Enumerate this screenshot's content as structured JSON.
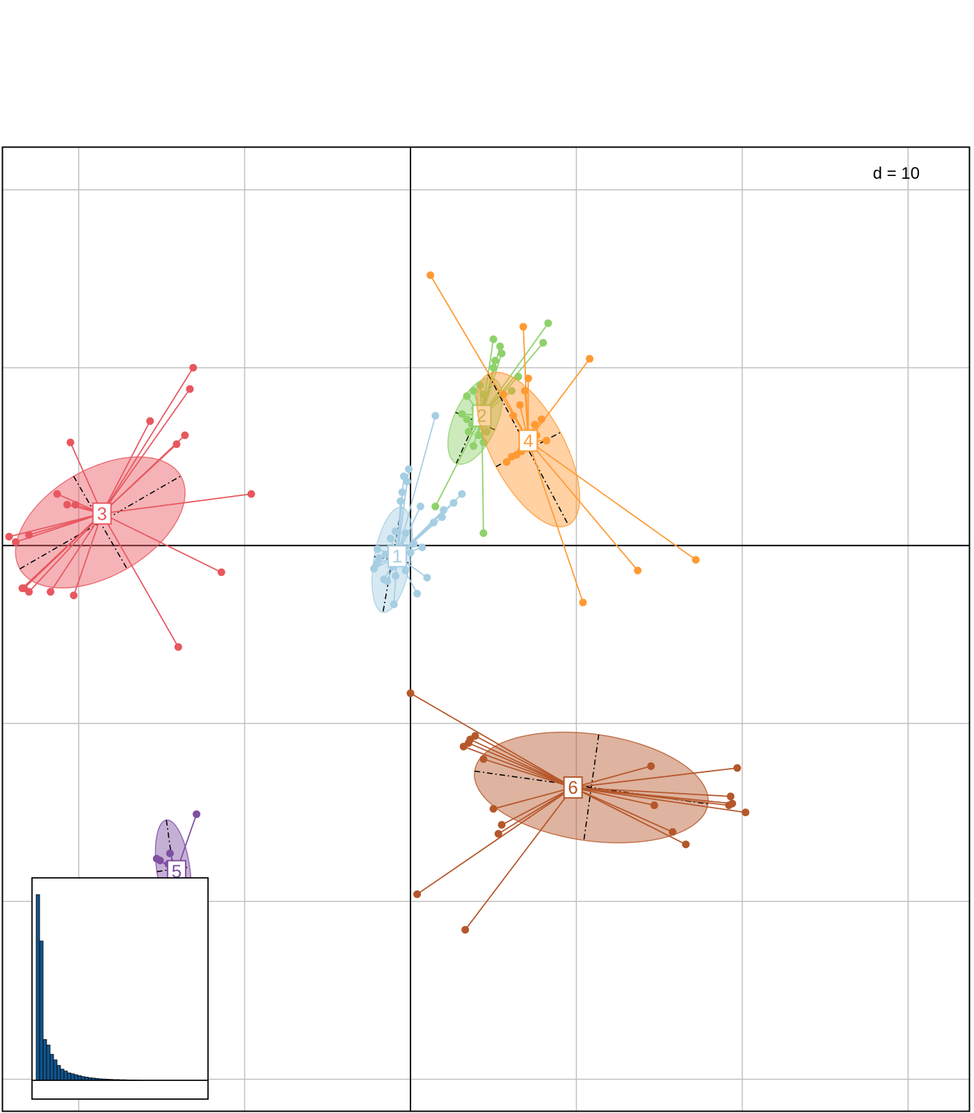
{
  "chart_data": {
    "type": "scatter",
    "title": "",
    "xlabel": "",
    "ylabel": "",
    "scale_label": "d = 10",
    "grid": true,
    "xlim": [
      -24.6,
      33.7
    ],
    "ylim": [
      -31.8,
      22.4
    ],
    "axis_colors": {
      "grid": "#bfbfbf",
      "axes": "#000000",
      "dashes": "#000000"
    },
    "groups": [
      {
        "label": "1",
        "color": "#a6cee3",
        "center": [
          -0.8,
          -0.6
        ],
        "ellipse": {
          "center": [
            -1.1,
            -0.8
          ],
          "rx": 1.1,
          "ry": 3.0,
          "angle": 10
        },
        "points": [
          [
            -0.1,
            4.3
          ],
          [
            -0.4,
            3.9
          ],
          [
            -0.2,
            3.6
          ],
          [
            -0.5,
            3.0
          ],
          [
            -0.6,
            2.5
          ],
          [
            0.6,
            2.2
          ],
          [
            2.0,
            2.0
          ],
          [
            2.6,
            2.4
          ],
          [
            3.1,
            2.9
          ],
          [
            1.9,
            1.6
          ],
          [
            1.4,
            1.3
          ],
          [
            -0.9,
            0.8
          ],
          [
            -0.3,
            0.7
          ],
          [
            -1.2,
            0.4
          ],
          [
            0.2,
            0.1
          ],
          [
            0.7,
            -0.1
          ],
          [
            -0.7,
            -0.2
          ],
          [
            0.0,
            -0.4
          ],
          [
            -1.5,
            -0.5
          ],
          [
            -1.9,
            -0.7
          ],
          [
            -2.0,
            -1.0
          ],
          [
            -2.2,
            -1.3
          ],
          [
            -1.1,
            -1.2
          ],
          [
            -0.3,
            -1.4
          ],
          [
            -1.6,
            -1.9
          ],
          [
            -1.4,
            -2.0
          ],
          [
            -0.9,
            -1.7
          ],
          [
            1.0,
            -1.8
          ],
          [
            0.4,
            -2.7
          ],
          [
            -1.0,
            -3.3
          ],
          [
            -2.0,
            -0.2
          ],
          [
            1.5,
            7.3
          ]
        ]
      },
      {
        "label": "2",
        "color": "#8fd16a",
        "center": [
          4.3,
          7.3
        ],
        "ellipse": {
          "center": [
            3.9,
            7.0
          ],
          "rx": 1.3,
          "ry": 2.6,
          "angle": 24
        },
        "points": [
          [
            5.0,
            11.6
          ],
          [
            5.4,
            11.2
          ],
          [
            5.5,
            10.8
          ],
          [
            5.1,
            10.4
          ],
          [
            5.0,
            10.0
          ],
          [
            4.2,
            9.0
          ],
          [
            3.8,
            8.7
          ],
          [
            4.4,
            8.5
          ],
          [
            3.4,
            8.4
          ],
          [
            3.9,
            7.7
          ],
          [
            3.1,
            7.4
          ],
          [
            3.4,
            7.1
          ],
          [
            3.7,
            6.8
          ],
          [
            3.5,
            6.4
          ],
          [
            4.1,
            6.2
          ],
          [
            4.4,
            5.8
          ],
          [
            3.8,
            5.6
          ],
          [
            8.3,
            12.5
          ],
          [
            8.0,
            11.4
          ],
          [
            6.5,
            9.5
          ],
          [
            6.1,
            8.7
          ],
          [
            1.5,
            2.2
          ],
          [
            4.4,
            0.7
          ],
          [
            4.6,
            6.4
          ]
        ]
      },
      {
        "label": "3",
        "color": "#e8575f",
        "center": [
          -18.6,
          1.8
        ],
        "ellipse": {
          "center": [
            -18.7,
            1.3
          ],
          "rx": 5.6,
          "ry": 3.0,
          "angle": -30
        },
        "points": [
          [
            -13.1,
            10.0
          ],
          [
            -13.3,
            8.8
          ],
          [
            -15.7,
            7.0
          ],
          [
            -13.6,
            6.2
          ],
          [
            -14.1,
            5.7
          ],
          [
            -20.5,
            5.8
          ],
          [
            -9.6,
            2.9
          ],
          [
            -21.3,
            2.9
          ],
          [
            -20.7,
            2.3
          ],
          [
            -20.2,
            2.3
          ],
          [
            -24.2,
            0.5
          ],
          [
            -23.0,
            0.6
          ],
          [
            -23.8,
            0.2
          ],
          [
            -11.4,
            -1.5
          ],
          [
            -23.3,
            -2.4
          ],
          [
            -23.0,
            -2.6
          ],
          [
            -21.7,
            -2.6
          ],
          [
            -20.3,
            -2.8
          ],
          [
            -23.4,
            -2.4
          ],
          [
            -14.0,
            -5.7
          ]
        ]
      },
      {
        "label": "4",
        "color": "#ff9a33",
        "center": [
          7.1,
          5.9
        ],
        "ellipse": {
          "center": [
            7.1,
            5.4
          ],
          "rx": 2.2,
          "ry": 4.8,
          "angle": -28
        },
        "points": [
          [
            1.2,
            15.2
          ],
          [
            6.8,
            12.3
          ],
          [
            10.8,
            10.5
          ],
          [
            7.1,
            9.4
          ],
          [
            6.9,
            8.7
          ],
          [
            5.6,
            8.5
          ],
          [
            6.6,
            7.9
          ],
          [
            6.2,
            7.3
          ],
          [
            7.9,
            7.1
          ],
          [
            7.5,
            6.8
          ],
          [
            7.6,
            6.2
          ],
          [
            8.2,
            5.9
          ],
          [
            6.7,
            5.4
          ],
          [
            6.4,
            5.1
          ],
          [
            5.8,
            4.7
          ],
          [
            6.1,
            5.0
          ],
          [
            6.7,
            5.3
          ],
          [
            13.7,
            -1.4
          ],
          [
            17.2,
            -0.8
          ],
          [
            10.4,
            -3.2
          ]
        ]
      },
      {
        "label": "5",
        "color": "#7e4fa2",
        "center": [
          -14.1,
          -18.3
        ],
        "ellipse": {
          "center": [
            -14.3,
            -18.2
          ],
          "rx": 1.0,
          "ry": 2.8,
          "angle": -8
        },
        "points": [
          [
            -12.9,
            -15.1
          ],
          [
            -14.5,
            -17.3
          ],
          [
            -15.1,
            -17.7
          ],
          [
            -14.6,
            -17.9
          ],
          [
            -15.3,
            -17.6
          ],
          [
            -12.5,
            -24.0
          ]
        ]
      },
      {
        "label": "6",
        "color": "#b5572b",
        "center": [
          9.8,
          -13.6
        ],
        "ellipse": {
          "center": [
            10.9,
            -13.6
          ],
          "rx": 7.1,
          "ry": 3.0,
          "angle": 8
        },
        "points": [
          [
            0.0,
            -8.3
          ],
          [
            3.9,
            -10.7
          ],
          [
            3.6,
            -10.9
          ],
          [
            3.5,
            -11.1
          ],
          [
            3.2,
            -11.3
          ],
          [
            4.4,
            -12.0
          ],
          [
            14.5,
            -12.4
          ],
          [
            19.7,
            -12.5
          ],
          [
            19.3,
            -14.1
          ],
          [
            19.4,
            -14.5
          ],
          [
            19.2,
            -14.6
          ],
          [
            20.2,
            -15.0
          ],
          [
            14.7,
            -14.6
          ],
          [
            5.0,
            -14.8
          ],
          [
            5.5,
            -15.7
          ],
          [
            5.3,
            -16.2
          ],
          [
            15.8,
            -16.1
          ],
          [
            16.6,
            -16.8
          ],
          [
            0.4,
            -19.6
          ],
          [
            3.3,
            -21.6
          ]
        ]
      }
    ],
    "inset": {
      "type": "bar",
      "title": "",
      "values": [
        100,
        75,
        22,
        19,
        14,
        11,
        8,
        6,
        5,
        4,
        3.5,
        3,
        2.5,
        2,
        1.7,
        1.4,
        1.2,
        1.0,
        0.8,
        0.7,
        0.6,
        0.5,
        0.4,
        0.4,
        0.3,
        0.3,
        0.2,
        0.2,
        0.2,
        0.1
      ],
      "fill": "#12548b"
    }
  }
}
